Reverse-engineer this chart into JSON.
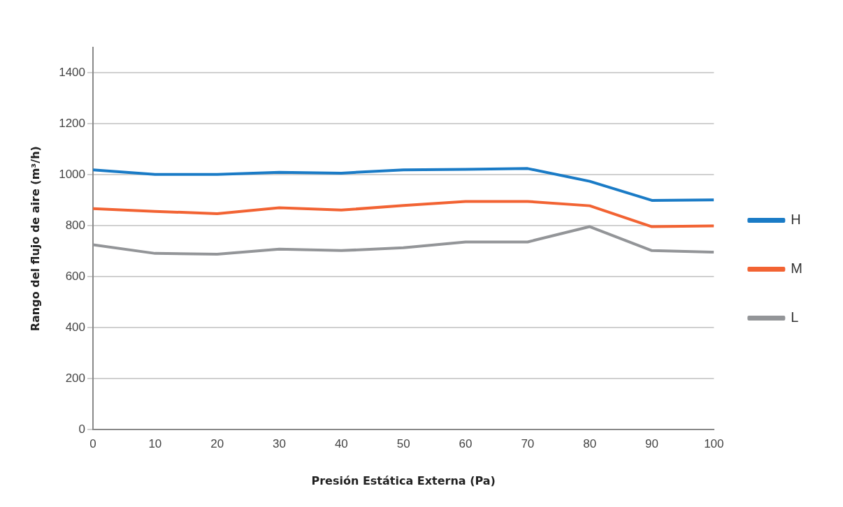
{
  "chart_data": {
    "type": "line",
    "xlabel": "Presión Estática Externa (Pa)",
    "ylabel": "Rango del flujo de aire (m³/h)",
    "x": [
      0,
      10,
      20,
      30,
      40,
      50,
      60,
      70,
      80,
      90,
      100
    ],
    "xlim": [
      0,
      100
    ],
    "xticks": [
      0,
      10,
      20,
      30,
      40,
      50,
      60,
      70,
      80,
      90,
      100
    ],
    "ylim": [
      0,
      1500
    ],
    "yticks": [
      0,
      200,
      400,
      600,
      800,
      1000,
      1200,
      1400
    ],
    "grid": "y",
    "legend": "right",
    "marker": "none",
    "line_style": "solid",
    "series": [
      {
        "name": "H",
        "color": "#1a7bc6",
        "values": [
          1020,
          1002,
          1002,
          1010,
          1007,
          1020,
          1022,
          1025,
          975,
          900,
          902
        ]
      },
      {
        "name": "M",
        "color": "#f26333",
        "values": [
          868,
          857,
          848,
          871,
          862,
          880,
          896,
          896,
          879,
          797,
          800
        ]
      },
      {
        "name": "L",
        "color": "#939598",
        "values": [
          726,
          692,
          689,
          709,
          703,
          714,
          737,
          737,
          797,
          703,
          697
        ]
      }
    ]
  }
}
